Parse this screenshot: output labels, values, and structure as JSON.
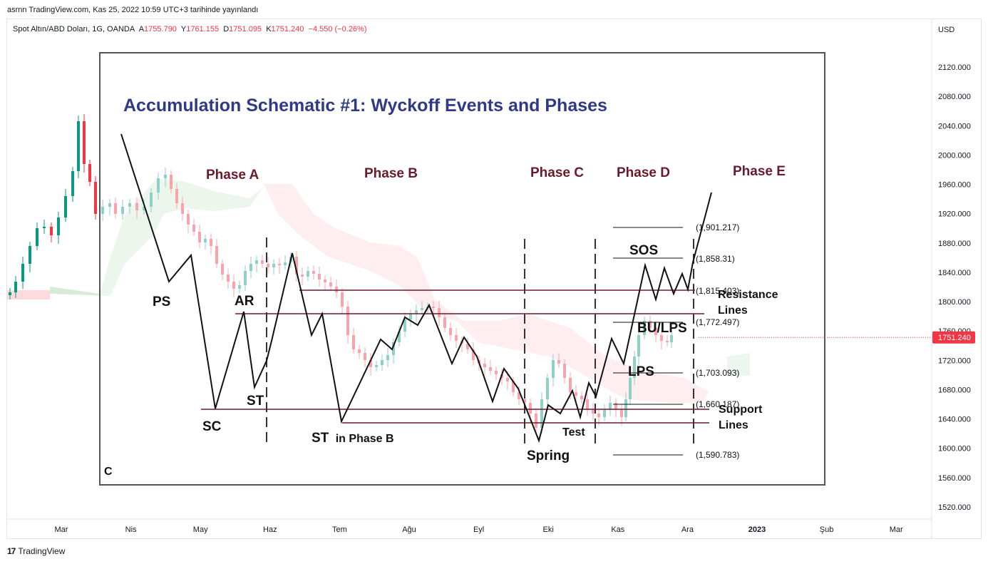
{
  "header": {
    "published": "asrnn TradingView.com, Kas 25, 2022 10:59 UTC+3 tarihinde yayınlandı"
  },
  "legend": {
    "symbol": "Spot Altın/ABD Doları, 1G, OANDA",
    "open_label": "A",
    "open": "1755.790",
    "high_label": "Y",
    "high": "1761.155",
    "low_label": "D",
    "low": "1751.095",
    "close_label": "K",
    "close": "1751.240",
    "change": "−4.550 (−0.26%)"
  },
  "footer": {
    "brand": "TradingView",
    "logo_mark": "17"
  },
  "colors": {
    "up": "#089981",
    "down": "#f23645",
    "cloud_bull": "#c8e6c9",
    "cloud_bear": "#ffcdd2",
    "overlay_title": "#2f3a86",
    "phase_label": "#6b1a2a"
  },
  "chart_data": {
    "type": "candlestick",
    "currency": "USD",
    "y_ticks": [
      "2120.000",
      "2080.000",
      "2040.000",
      "2000.000",
      "1960.000",
      "1920.000",
      "1880.000",
      "1840.000",
      "1800.000",
      "1760.000",
      "1720.000",
      "1680.000",
      "1640.000",
      "1600.000",
      "1560.000",
      "1520.000"
    ],
    "y_ticks_values": [
      2120,
      2080,
      2040,
      2000,
      1960,
      1920,
      1880,
      1840,
      1800,
      1760,
      1720,
      1680,
      1640,
      1600,
      1560,
      1520
    ],
    "ylim": [
      1505,
      2180
    ],
    "x_ticks": [
      "Mar",
      "Nis",
      "May",
      "Haz",
      "Tem",
      "Ağu",
      "Eyl",
      "Eki",
      "Kas",
      "Ara",
      "2023",
      "Şub",
      "Mar"
    ],
    "x_ticks_bold": [
      false,
      false,
      false,
      false,
      false,
      false,
      false,
      false,
      false,
      false,
      true,
      false,
      false
    ],
    "last_price": "1751.240",
    "last_price_value": 1751.24,
    "overlay": {
      "title": "Accumulation Schematic #1: Wyckoff Events and Phases",
      "phases": [
        "Phase A",
        "Phase B",
        "Phase C",
        "Phase D",
        "Phase E"
      ],
      "events": {
        "ps": "PS",
        "sc": "SC",
        "ar": "AR",
        "st": "ST",
        "st_b_main": "ST",
        "st_b_suffix": "in Phase B",
        "spring": "Spring",
        "test": "Test",
        "lps": "LPS",
        "bu_lps": "BU/LPS",
        "sos": "SOS",
        "resistance": "Resistance",
        "support": "Support",
        "lines": "Lines",
        "stray": "C"
      },
      "levels": [
        "(1,901.217)",
        "(1,858.31)",
        "(1,815.403)",
        "(1,772.497)",
        "(1,703.093)",
        "(1,660.187)",
        "(1,590.783)"
      ]
    }
  }
}
